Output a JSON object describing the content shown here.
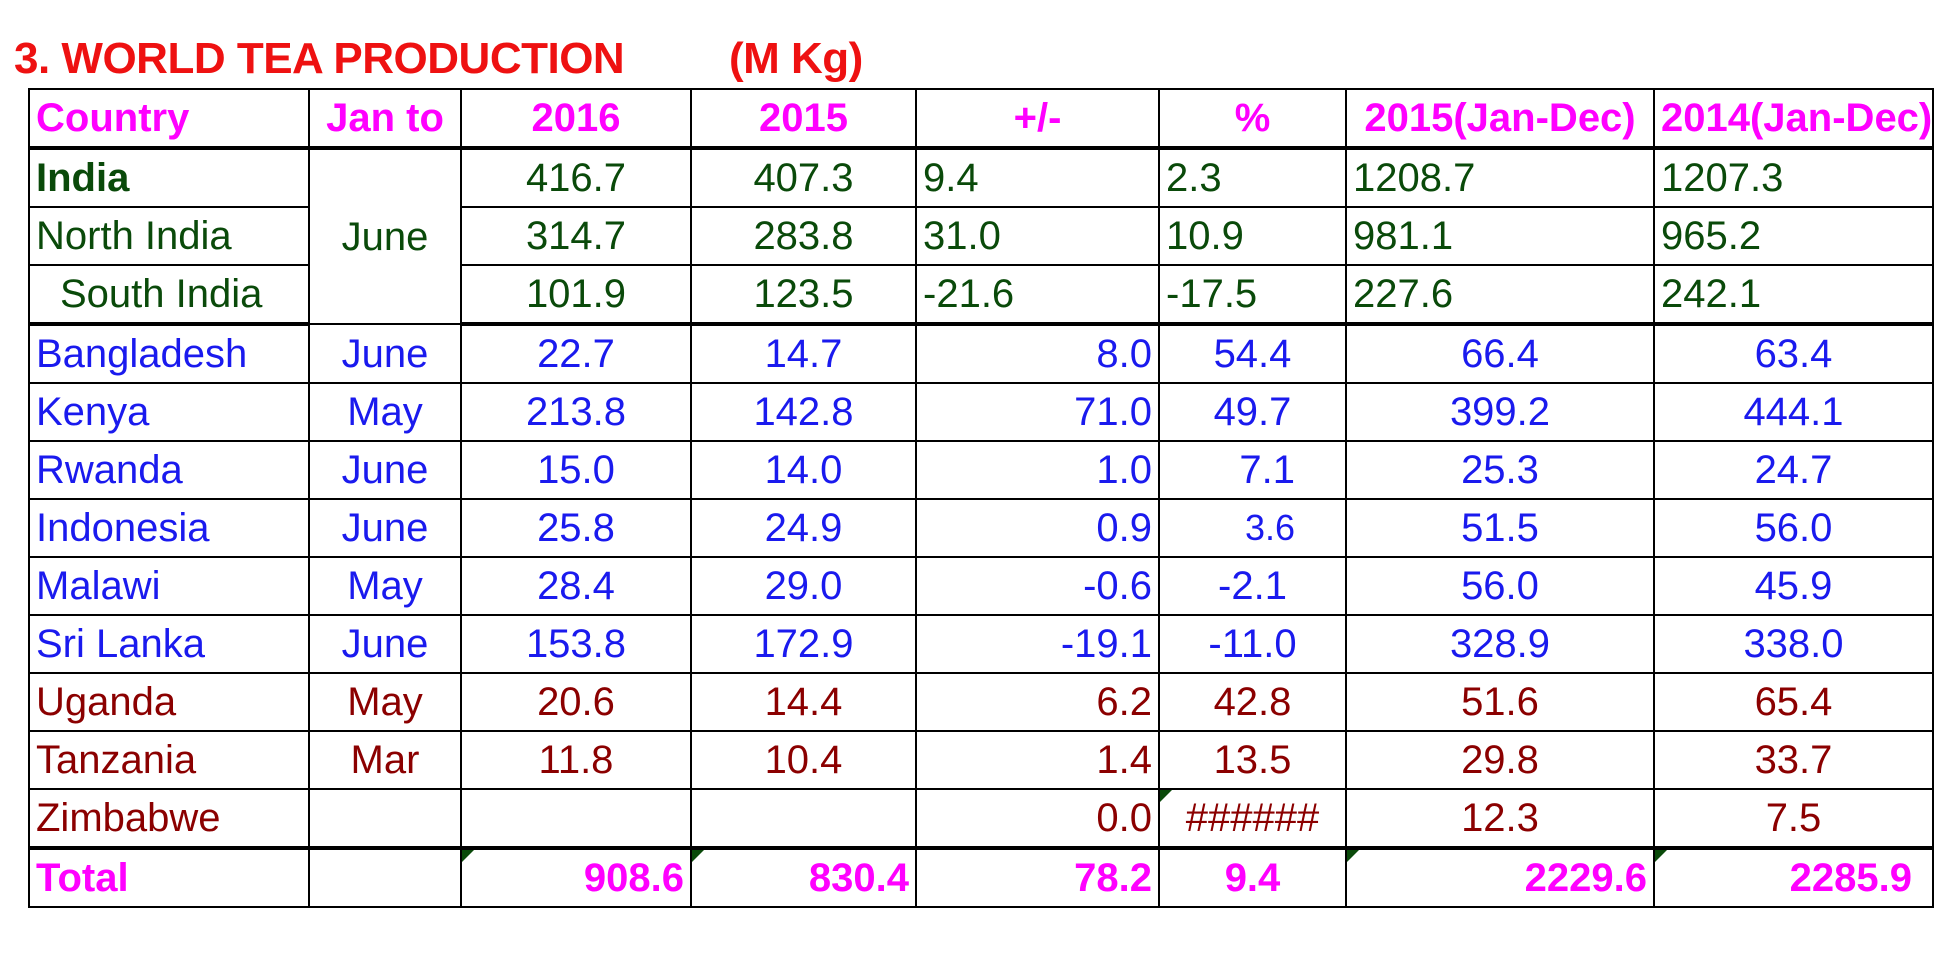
{
  "title": "3. WORLD TEA PRODUCTION",
  "unit": "(M Kg)",
  "headers": [
    "Country",
    "Jan to",
    "2016",
    "2015",
    "+/-",
    "%",
    "2015(Jan-Dec)",
    "2014(Jan-Dec)"
  ],
  "india_group": {
    "month": "June",
    "rows": [
      {
        "country": "India",
        "v2016": "416.7",
        "v2015": "407.3",
        "diff": "9.4",
        "pct": "2.3",
        "y2015": "1208.7",
        "y2014": "1207.3"
      },
      {
        "country": "North India",
        "v2016": "314.7",
        "v2015": "283.8",
        "diff": "31.0",
        "pct": "10.9",
        "y2015": "981.1",
        "y2014": "965.2"
      },
      {
        "country": "South India",
        "v2016": "101.9",
        "v2015": "123.5",
        "diff": "-21.6",
        "pct": "-17.5",
        "y2015": "227.6",
        "y2014": "242.1"
      }
    ]
  },
  "rows": [
    {
      "country": "Bangladesh",
      "month": "June",
      "v2016": "22.7",
      "v2015": "14.7",
      "diff": "8.0",
      "pct": "54.4",
      "y2015": "66.4",
      "y2014": "63.4"
    },
    {
      "country": "Kenya",
      "month": "May",
      "v2016": "213.8",
      "v2015": "142.8",
      "diff": "71.0",
      "pct": "49.7",
      "y2015": "399.2",
      "y2014": "444.1"
    },
    {
      "country": "Rwanda",
      "month": "June",
      "v2016": "15.0",
      "v2015": "14.0",
      "diff": "1.0",
      "pct": "7.1",
      "y2015": "25.3",
      "y2014": "24.7"
    },
    {
      "country": "Indonesia",
      "month": "June",
      "v2016": "25.8",
      "v2015": "24.9",
      "diff": "0.9",
      "pct": "3.6",
      "y2015": "51.5",
      "y2014": "56.0"
    },
    {
      "country": "Malawi",
      "month": "May",
      "v2016": "28.4",
      "v2015": "29.0",
      "diff": "-0.6",
      "pct": "-2.1",
      "y2015": "56.0",
      "y2014": "45.9"
    },
    {
      "country": "Sri Lanka",
      "month": "June",
      "v2016": "153.8",
      "v2015": "172.9",
      "diff": "-19.1",
      "pct": "-11.0",
      "y2015": "328.9",
      "y2014": "338.0"
    },
    {
      "country": "Uganda",
      "month": "May",
      "v2016": "20.6",
      "v2015": "14.4",
      "diff": "6.2",
      "pct": "42.8",
      "y2015": "51.6",
      "y2014": "65.4"
    },
    {
      "country": "Tanzania",
      "month": "Mar",
      "v2016": "11.8",
      "v2015": "10.4",
      "diff": "1.4",
      "pct": "13.5",
      "y2015": "29.8",
      "y2014": "33.7"
    },
    {
      "country": "Zimbabwe",
      "month": "",
      "v2016": "",
      "v2015": "",
      "diff": "0.0",
      "pct": "######",
      "y2015": "12.3",
      "y2014": "7.5"
    }
  ],
  "total": {
    "country": "Total",
    "month": "",
    "v2016": "908.6",
    "v2015": "830.4",
    "diff": "78.2",
    "pct": "9.4",
    "y2015": "2229.6",
    "y2014": "2285.9"
  },
  "colors": {
    "title": "#ee1111",
    "header": "#ff00ff",
    "india": "#0a4a0a",
    "blue": "#1a1aee",
    "brown": "#8b0000"
  }
}
